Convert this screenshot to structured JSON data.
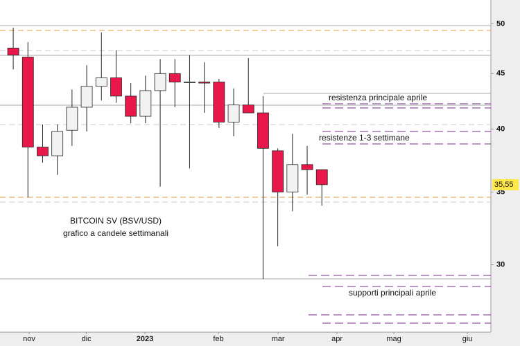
{
  "chart_data": {
    "type": "candlestick",
    "log_scale": true,
    "annotations": [
      "BITCOIN SV (BSV/USD)",
      "grafico a candele settimanali",
      "resistenza principale aprile",
      "resistenze 1-3 settimane",
      "supporti principali aprile"
    ],
    "x": [
      0,
      1,
      2,
      3,
      4,
      5,
      6,
      7,
      8,
      9,
      10,
      11,
      12,
      13,
      14,
      15,
      16,
      17,
      18,
      19,
      20,
      21
    ],
    "open": [
      47.5,
      46.6,
      38.5,
      37.8,
      39.9,
      41.9,
      43.8,
      44.6,
      42.9,
      41.1,
      43.4,
      45.0,
      44.2,
      44.2,
      44.2,
      40.6,
      42.1,
      41.4,
      38.2,
      35.0,
      37.1,
      36.7
    ],
    "high": [
      49.6,
      48.1,
      40.4,
      40.4,
      43.5,
      45.8,
      49.1,
      47.3,
      44.1,
      44.8,
      46.4,
      46.4,
      46.8,
      46.1,
      44.5,
      43.6,
      46.5,
      42.9,
      38.4,
      39.6,
      38.6,
      36.7
    ],
    "low": [
      45.4,
      34.6,
      37.25,
      36.3,
      38.6,
      39.8,
      42.5,
      42.3,
      40.5,
      40.5,
      35.4,
      41.9,
      36.8,
      41.4,
      40.1,
      39.4,
      41.4,
      29.1,
      31.2,
      33.6,
      34.8,
      34.0
    ],
    "close": [
      46.8,
      38.5,
      37.8,
      39.8,
      41.9,
      43.8,
      44.6,
      42.9,
      41.1,
      43.4,
      45.0,
      44.2,
      44.2,
      44.1,
      40.6,
      42.1,
      41.4,
      38.4,
      35.0,
      37.1,
      36.7,
      35.55
    ],
    "up_color": "#f2f2f2",
    "down_color": "#e8194a",
    "last_price": {
      "value": 35.55,
      "label": "35,55"
    },
    "xlim": [
      -0.9,
      32.5
    ],
    "xticks": [
      {
        "value": 1.08,
        "label": "nov"
      },
      {
        "value": 4.98,
        "label": "dic"
      },
      {
        "value": 8.96,
        "label": "2023"
      },
      {
        "value": 13.96,
        "label": "feb"
      },
      {
        "value": 18.02,
        "label": "mar"
      },
      {
        "value": 22.03,
        "label": "apr"
      },
      {
        "value": 25.9,
        "label": "mag"
      },
      {
        "value": 30.9,
        "label": "giu"
      }
    ],
    "ylim": [
      26,
      52.6
    ],
    "yticks": [
      30,
      35,
      40,
      45,
      50
    ]
  }
}
